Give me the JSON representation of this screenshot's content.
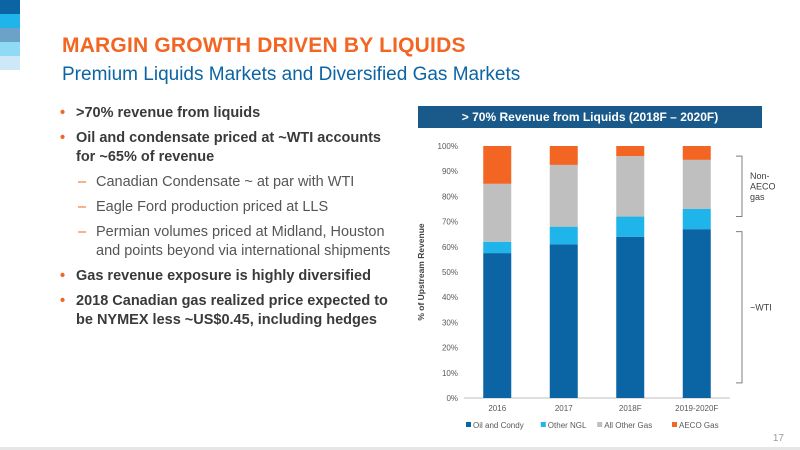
{
  "title": "MARGIN GROWTH DRIVEN BY LIQUIDS",
  "subtitle": "Premium Liquids Markets and Diversified Gas Markets",
  "bullets": [
    {
      "level": 1,
      "text": ">70% revenue from liquids"
    },
    {
      "level": 1,
      "text": "Oil and condensate priced at ~WTI accounts for ~65% of revenue"
    },
    {
      "level": 2,
      "text": "Canadian Condensate ~ at par with WTI"
    },
    {
      "level": 2,
      "text": "Eagle Ford production priced at LLS"
    },
    {
      "level": 2,
      "text": "Permian volumes priced at Midland, Houston and points beyond via international shipments"
    },
    {
      "level": 1,
      "text": "Gas revenue exposure is highly diversified"
    },
    {
      "level": 1,
      "text": "2018 Canadian gas realized price expected to be NYMEX less ~US$0.45, including hedges"
    }
  ],
  "bullet_marks": {
    "level1": "•",
    "level2": "–"
  },
  "page_number": "17",
  "chart_data": {
    "type": "bar",
    "stacked": true,
    "title": "> 70% Revenue from Liquids (2018F – 2020F)",
    "xlabel": "",
    "ylabel": "% of Upstream Revenue",
    "ylim": [
      0,
      100
    ],
    "yticks": [
      0,
      10,
      20,
      30,
      40,
      50,
      60,
      70,
      80,
      90,
      100
    ],
    "ytick_suffix": "%",
    "categories": [
      "2016",
      "2017",
      "2018F",
      "2019-2020F"
    ],
    "series": [
      {
        "name": "Oil and Condy",
        "color": "#0b64a4",
        "values": [
          57.5,
          61,
          64,
          67
        ]
      },
      {
        "name": "Other NGL",
        "color": "#1fb5ea",
        "values": [
          4.5,
          7,
          8,
          8
        ]
      },
      {
        "name": "All Other Gas",
        "color": "#bfbfbf",
        "values": [
          23,
          24.5,
          24,
          19.5
        ]
      },
      {
        "name": "AECO Gas",
        "color": "#f26522",
        "values": [
          15,
          7.5,
          4,
          5.5
        ]
      }
    ],
    "grid": false,
    "legend": "bottom",
    "annotations": [
      {
        "label": "Non-AECO gas",
        "lines": [
          "Non-",
          "AECO",
          "gas"
        ],
        "range": [
          72,
          96
        ]
      },
      {
        "label": "~WTI",
        "lines": [
          "~WTI"
        ],
        "range": [
          6,
          66
        ]
      }
    ]
  }
}
